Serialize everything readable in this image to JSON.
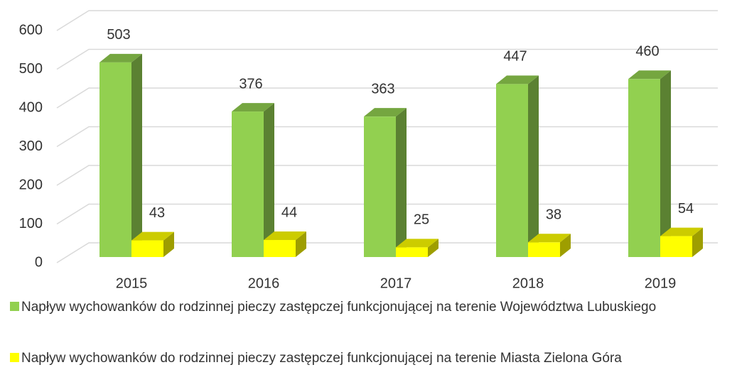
{
  "chart_data": {
    "type": "bar3d",
    "categories": [
      "2015",
      "2016",
      "2017",
      "2018",
      "2019"
    ],
    "series": [
      {
        "name": "Napływ wychowanków do rodzinnej pieczy zastępczej funkcjonującej na terenie Województwa Lubuskiego",
        "color": "#92d050",
        "values": [
          503,
          376,
          363,
          447,
          460
        ]
      },
      {
        "name": "Napływ wychowanków do rodzinnej pieczy zastępczej funkcjonującej na terenie Miasta Zielona Góra",
        "color": "#ffff00",
        "values": [
          43,
          44,
          25,
          38,
          54
        ]
      }
    ],
    "ylim": [
      0,
      600
    ],
    "yticks": [
      0,
      100,
      200,
      300,
      400,
      500,
      600
    ],
    "grid": true
  }
}
